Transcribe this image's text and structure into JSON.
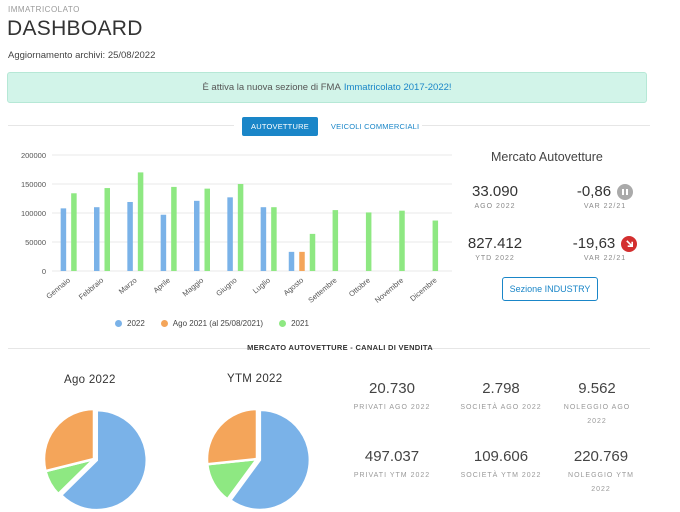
{
  "breadcrumb": "IMMATRICOLATO",
  "page_title": "DASHBOARD",
  "updated": {
    "label": "Aggiornamento archivi:",
    "date": "25/08/2022"
  },
  "banner": {
    "text": "È attiva la nuova sezione di FMA",
    "link": "Immatricolato 2017-2022!"
  },
  "tabs": [
    {
      "label": "AUTOVETTURE",
      "active": true
    },
    {
      "label": "VEICOLI COMMERCIALI",
      "active": false
    }
  ],
  "colors": {
    "series_2022": "#7ab2e8",
    "series_ago2021": "#f4a55a",
    "series_2021": "#8ee882",
    "accent": "#1a86c8",
    "down": "#d32f2f",
    "neutral": "#aaaaaa"
  },
  "chart_data": {
    "type": "bar",
    "categories": [
      "Gennaio",
      "Febbraio",
      "Marzo",
      "Aprile",
      "Maggio",
      "Giugno",
      "Luglio",
      "Agosto",
      "Settembre",
      "Ottobre",
      "Novembre",
      "Dicembre"
    ],
    "series": [
      {
        "name": "2022",
        "color": "#7ab2e8",
        "values": [
          108000,
          110000,
          119000,
          97000,
          121000,
          127000,
          110000,
          33000,
          null,
          null,
          null,
          null
        ]
      },
      {
        "name": "Ago 2021 (al 25/08/2021)",
        "color": "#f4a55a",
        "values": [
          null,
          null,
          null,
          null,
          null,
          null,
          null,
          33000,
          null,
          null,
          null,
          null
        ]
      },
      {
        "name": "2021",
        "color": "#8ee882",
        "values": [
          134000,
          143000,
          170000,
          145000,
          142000,
          150000,
          110000,
          64000,
          105000,
          101000,
          104000,
          87000
        ]
      }
    ],
    "y_ticks": [
      "0",
      "50000",
      "100000",
      "150000",
      "200000"
    ],
    "ylim": [
      0,
      200000
    ],
    "grid": true,
    "legend": "bottom"
  },
  "market": {
    "title": "Mercato Autovetture",
    "ago_value": "33.090",
    "ago_label": "AGO 2022",
    "var_ago_value": "-0,86",
    "var_ago_label": "VAR 22/21",
    "var_ago_icon": "pause-icon",
    "ytd_value": "827.412",
    "ytd_label": "YTD 2022",
    "var_ytd_value": "-19,63",
    "var_ytd_label": "VAR 22/21",
    "var_ytd_icon": "arrow-down-right-icon",
    "industry_button": "Sezione INDUSTRY"
  },
  "channels": {
    "section_title": "MERCATO AUTOVETTURE - CANALI DI VENDITA",
    "pie_ago": {
      "title": "Ago 2022",
      "slices": [
        {
          "label": "Privati",
          "value": 20730,
          "color": "#7ab2e8"
        },
        {
          "label": "Società",
          "value": 2798,
          "color": "#8ee882"
        },
        {
          "label": "Noleggio",
          "value": 9562,
          "color": "#f4a55a"
        }
      ]
    },
    "pie_ytd": {
      "title": "YTM 2022",
      "slices": [
        {
          "label": "Privati",
          "value": 497037,
          "color": "#7ab2e8"
        },
        {
          "label": "Società",
          "value": 109606,
          "color": "#8ee882"
        },
        {
          "label": "Noleggio",
          "value": 220769,
          "color": "#f4a55a"
        }
      ]
    },
    "stats": [
      {
        "value": "20.730",
        "label": "PRIVATI AGO 2022"
      },
      {
        "value": "2.798",
        "label": "SOCIETÀ AGO 2022"
      },
      {
        "value": "9.562",
        "label": "NOLEGGIO AGO 2022"
      },
      {
        "value": "497.037",
        "label": "PRIVATI YTM 2022"
      },
      {
        "value": "109.606",
        "label": "SOCIETÀ YTM 2022"
      },
      {
        "value": "220.769",
        "label": "NOLEGGIO YTM 2022"
      }
    ]
  }
}
